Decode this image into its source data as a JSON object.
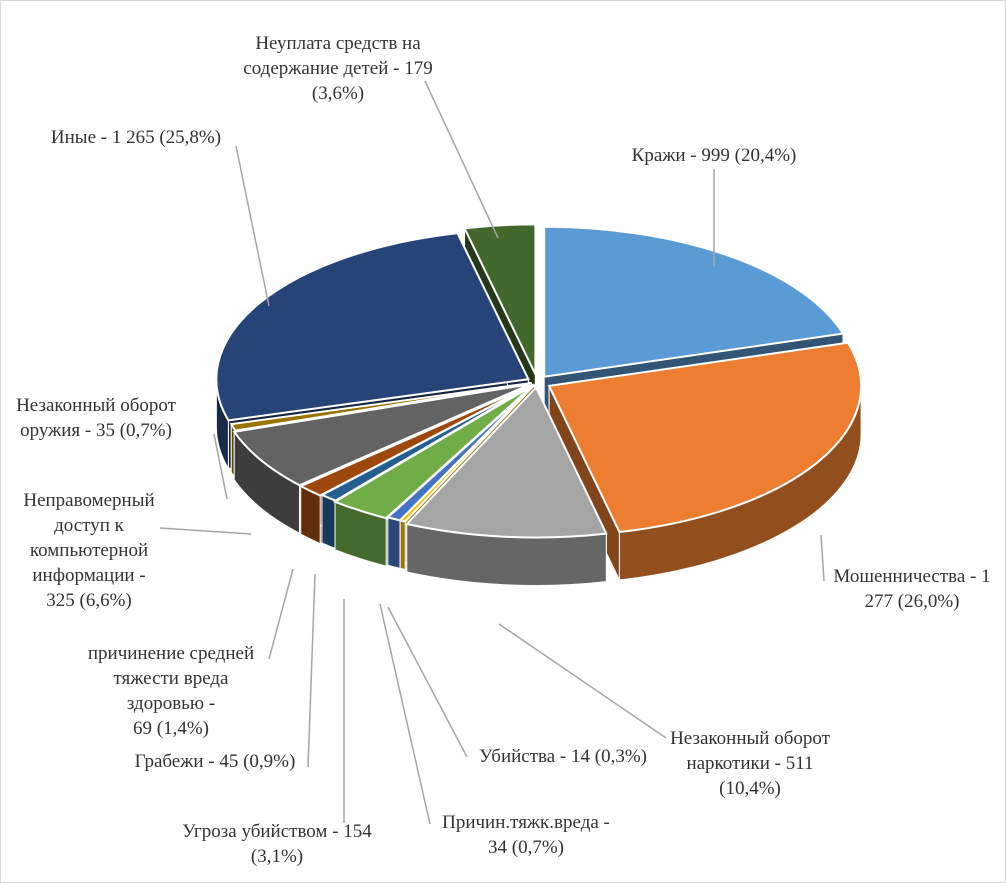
{
  "chart_data": {
    "type": "pie",
    "style": "3d-exploded",
    "title": "",
    "legend": "none",
    "slices": [
      {
        "name": "Кражи",
        "value": 999,
        "percent": 20.4,
        "color": "#5b9bd5",
        "label_lines": [
          "Кражи - 999 (20,4%)"
        ]
      },
      {
        "name": "Мошенничества",
        "value": 1277,
        "percent": 26.0,
        "color": "#ed7d31",
        "label_lines": [
          "Мошенничества - 1",
          "277 (26,0%)"
        ]
      },
      {
        "name": "Незаконный оборот наркотики",
        "value": 511,
        "percent": 10.4,
        "color": "#a5a5a5",
        "label_lines": [
          "Незаконный оборот",
          "наркотики - 511",
          "(10,4%)"
        ]
      },
      {
        "name": "Убийства",
        "value": 14,
        "percent": 0.3,
        "color": "#ffc000",
        "label_lines": [
          "Убийства - 14 (0,3%)"
        ]
      },
      {
        "name": "Причин.тяжк.вреда",
        "value": 34,
        "percent": 0.7,
        "color": "#4472c4",
        "label_lines": [
          "Причин.тяжк.вреда -",
          "34 (0,7%)"
        ]
      },
      {
        "name": "Угроза убийством",
        "value": 154,
        "percent": 3.1,
        "color": "#70ad47",
        "label_lines": [
          "Угроза убийством - 154",
          "(3,1%)"
        ]
      },
      {
        "name": "Грабежи",
        "value": 45,
        "percent": 0.9,
        "color": "#255e91",
        "label_lines": [
          "Грабежи - 45 (0,9%)"
        ]
      },
      {
        "name": "причинение средней тяжести вреда здоровью",
        "value": 69,
        "percent": 1.4,
        "color": "#9e480e",
        "label_lines": [
          "причинение средней",
          "тяжести вреда",
          "здоровью -",
          "69 (1,4%)"
        ]
      },
      {
        "name": "Неправомерный доступ к компьютерной информации",
        "value": 325,
        "percent": 6.6,
        "color": "#636363",
        "label_lines": [
          "Неправомерный",
          "доступ к",
          "компьютерной",
          "информации -",
          "325 (6,6%)"
        ]
      },
      {
        "name": "Незаконный оборот оружия",
        "value": 35,
        "percent": 0.7,
        "color": "#997300",
        "label_lines": [
          "Незаконный оборот",
          "оружия - 35 (0,7%)"
        ]
      },
      {
        "name": "Иные",
        "value": 1265,
        "percent": 25.8,
        "color": "#264478",
        "label_lines": [
          "Иные - 1 265 (25,8%)"
        ]
      },
      {
        "name": "Неуплата средств на содержание детей",
        "value": 179,
        "percent": 3.6,
        "color": "#43682b",
        "label_lines": [
          "Неуплата средств на",
          "содержание детей - 179",
          "(3,6%)"
        ]
      }
    ]
  }
}
